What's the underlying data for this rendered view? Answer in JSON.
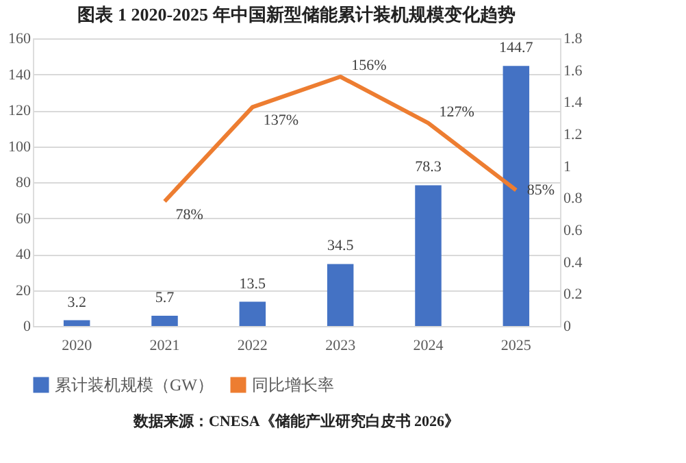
{
  "chart_data": {
    "type": "bar",
    "title": "图表 1   2020-2025 年中国新型储能累计装机规模变化趋势",
    "categories": [
      "2020",
      "2021",
      "2022",
      "2023",
      "2024",
      "2025"
    ],
    "series": [
      {
        "name": "累计装机规模（GW）",
        "type": "bar",
        "color": "#4472c4",
        "values": [
          3.2,
          5.7,
          13.5,
          34.5,
          78.3,
          144.7
        ]
      },
      {
        "name": "同比增长率",
        "type": "line",
        "axis": "y2",
        "color": "#ed7d31",
        "values": [
          null,
          0.78,
          1.37,
          1.56,
          1.27,
          0.85
        ],
        "value_labels": [
          null,
          "78%",
          "137%",
          "156%",
          "127%",
          "85%"
        ]
      }
    ],
    "ylim": [
      0,
      160
    ],
    "yticks": [
      0,
      20,
      40,
      60,
      80,
      100,
      120,
      140,
      160
    ],
    "y2lim": [
      0,
      1.8
    ],
    "y2ticks": [
      0,
      0.2,
      0.4,
      0.6,
      0.8,
      1,
      1.2,
      1.4,
      1.6,
      1.8
    ],
    "data_labels": true,
    "grid": "y",
    "legend": "bottom",
    "annotations": [
      "数据来源：CNESA《储能产业研究白皮书 2026》"
    ]
  }
}
